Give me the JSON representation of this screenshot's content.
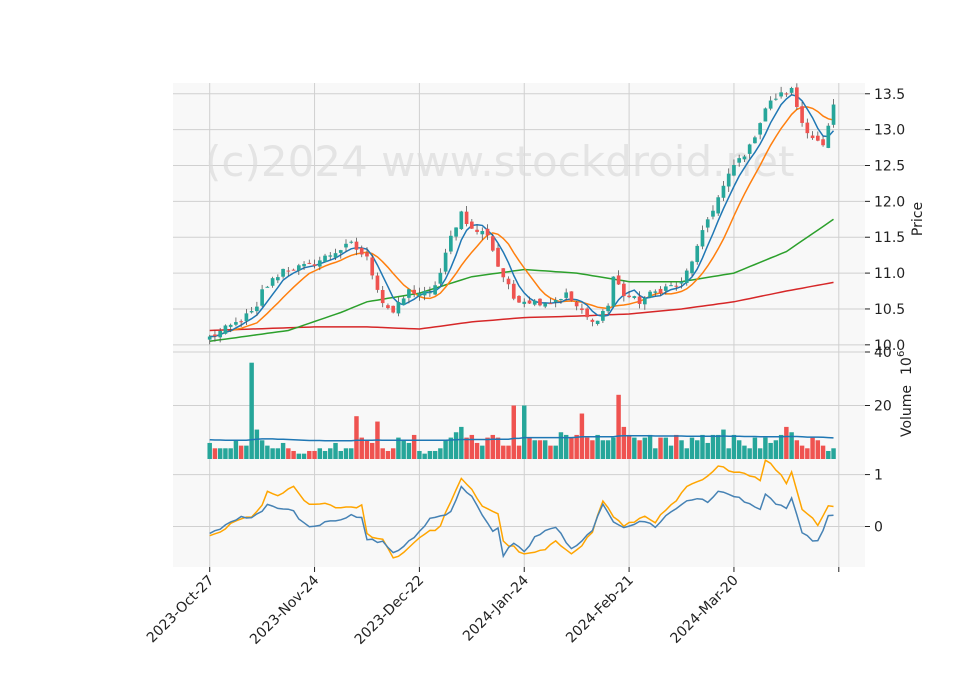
{
  "watermark": "(c)2024 www.stockdroid.net",
  "chart_data": [
    {
      "type": "candlestick",
      "panel": "price",
      "ylabel": "Price",
      "ylim": [
        9.9,
        13.65
      ],
      "yticks": [
        10.0,
        10.5,
        11.0,
        11.5,
        12.0,
        12.5,
        13.0,
        13.5
      ],
      "ytick_labels": [
        "10.0",
        "10.5",
        "11.0",
        "11.5",
        "12.0",
        "12.5",
        "13.0",
        "13.5"
      ],
      "grid": true,
      "n_bars": 120,
      "x_range": [
        -7,
        125
      ],
      "xticks": [
        0,
        20,
        40,
        60,
        80,
        100,
        120
      ],
      "xtick_labels": [
        "2023-Oct-27",
        "2023-Nov-24",
        "2023-Dec-22",
        "2024-Jan-24",
        "2024-Feb-21",
        "2024-Mar-20",
        ""
      ],
      "close_anchors": [
        [
          0,
          10.1
        ],
        [
          5,
          10.3
        ],
        [
          9,
          10.5
        ],
        [
          10,
          10.75
        ],
        [
          14,
          11.05
        ],
        [
          19,
          11.1
        ],
        [
          24,
          11.3
        ],
        [
          27,
          11.4
        ],
        [
          30,
          11.2
        ],
        [
          33,
          10.6
        ],
        [
          35,
          10.45
        ],
        [
          38,
          10.75
        ],
        [
          42,
          10.7
        ],
        [
          44,
          11.0
        ],
        [
          46,
          11.5
        ],
        [
          48,
          11.85
        ],
        [
          50,
          11.6
        ],
        [
          53,
          11.55
        ],
        [
          55,
          11.1
        ],
        [
          58,
          10.65
        ],
        [
          62,
          10.6
        ],
        [
          65,
          10.6
        ],
        [
          68,
          10.7
        ],
        [
          71,
          10.45
        ],
        [
          73,
          10.3
        ],
        [
          76,
          10.55
        ],
        [
          77,
          10.95
        ],
        [
          79,
          10.7
        ],
        [
          82,
          10.6
        ],
        [
          84,
          10.7
        ],
        [
          87,
          10.8
        ],
        [
          90,
          10.85
        ],
        [
          93,
          11.35
        ],
        [
          95,
          11.75
        ],
        [
          97,
          12.05
        ],
        [
          100,
          12.5
        ],
        [
          103,
          12.75
        ],
        [
          106,
          13.3
        ],
        [
          108,
          13.45
        ],
        [
          111,
          13.55
        ],
        [
          113,
          13.1
        ],
        [
          115,
          12.9
        ],
        [
          117,
          12.75
        ],
        [
          119,
          13.3
        ]
      ],
      "ma_colors": {
        "fast": "#1f77b4",
        "medium": "#ff7f0e",
        "slow": "#2ca02c",
        "long": "#d62728"
      },
      "up_color": "#26a69a",
      "down_color": "#ef5350"
    },
    {
      "type": "bar",
      "panel": "volume",
      "ylabel": "Volume",
      "ylabel_exponent": "6",
      "ylim": [
        0,
        40
      ],
      "yticks": [
        20,
        40
      ],
      "ytick_labels": [
        "20",
        "40"
      ],
      "avg_line_color": "#1f77b4",
      "values": [
        6,
        4,
        4,
        4,
        4,
        7,
        5,
        5,
        36,
        11,
        7,
        5,
        4,
        4,
        6,
        4,
        3,
        2,
        2,
        3,
        3,
        4,
        3,
        4,
        6,
        3,
        4,
        4,
        16,
        8,
        7,
        6,
        14,
        4,
        3,
        4,
        8,
        7,
        6,
        9,
        3,
        2,
        3,
        3,
        4,
        7,
        8,
        10,
        12,
        8,
        9,
        6,
        5,
        8,
        9,
        8,
        5,
        5,
        20,
        5,
        20,
        8,
        7,
        7,
        7,
        5,
        5,
        10,
        9,
        8,
        9,
        17,
        8,
        7,
        9,
        7,
        7,
        8,
        24,
        12,
        9,
        8,
        7,
        8,
        9,
        4,
        8,
        8,
        5,
        9,
        7,
        4,
        8,
        7,
        9,
        6,
        9,
        9,
        11,
        4,
        9,
        7,
        5,
        4,
        8,
        4,
        8,
        6,
        7,
        9,
        12,
        10,
        7,
        5,
        4,
        8,
        7,
        5,
        3,
        4
      ],
      "avg_values": [
        7.2,
        7.1,
        7.1,
        7.0,
        7.0,
        7.0,
        7.0,
        7.0,
        7.2,
        7.4,
        7.5,
        7.5,
        7.5,
        7.4,
        7.4,
        7.3,
        7.2,
        7.1,
        7.0,
        6.9,
        6.9,
        6.9,
        6.8,
        6.8,
        6.8,
        6.8,
        6.8,
        6.8,
        7.0,
        7.0,
        7.0,
        7.0,
        7.1,
        7.0,
        7.0,
        7.0,
        7.0,
        7.0,
        7.0,
        7.0,
        7.0,
        7.0,
        7.0,
        7.0,
        7.0,
        7.0,
        7.1,
        7.2,
        7.3,
        7.3,
        7.3,
        7.3,
        7.3,
        7.3,
        7.4,
        7.4,
        7.4,
        7.4,
        7.7,
        7.7,
        8.0,
        8.0,
        8.0,
        8.0,
        8.0,
        8.0,
        8.0,
        8.0,
        8.0,
        8.0,
        8.1,
        8.3,
        8.3,
        8.3,
        8.3,
        8.3,
        8.3,
        8.3,
        8.6,
        8.7,
        8.7,
        8.7,
        8.7,
        8.7,
        8.7,
        8.6,
        8.6,
        8.6,
        8.6,
        8.6,
        8.6,
        8.5,
        8.5,
        8.5,
        8.5,
        8.5,
        8.5,
        8.5,
        8.6,
        8.5,
        8.5,
        8.5,
        8.4,
        8.4,
        8.4,
        8.3,
        8.3,
        8.3,
        8.3,
        8.3,
        8.4,
        8.4,
        8.4,
        8.3,
        8.2,
        8.2,
        8.2,
        8.1,
        8.0,
        7.9
      ]
    },
    {
      "type": "line",
      "panel": "indicator",
      "ylim": [
        -0.78,
        1.3
      ],
      "yticks": [
        0,
        1
      ],
      "ytick_labels": [
        "0",
        "1"
      ],
      "series_colors": [
        "#4682b4",
        "#ffa500"
      ],
      "series1_anchors": [
        [
          0,
          -0.15
        ],
        [
          2,
          -0.05
        ],
        [
          5,
          0.15
        ],
        [
          8,
          0.2
        ],
        [
          10,
          0.3
        ],
        [
          11,
          0.45
        ],
        [
          13,
          0.35
        ],
        [
          16,
          0.3
        ],
        [
          18,
          0.05
        ],
        [
          20,
          0.0
        ],
        [
          22,
          0.1
        ],
        [
          25,
          0.15
        ],
        [
          27,
          0.2
        ],
        [
          29,
          0.15
        ],
        [
          30,
          -0.25
        ],
        [
          33,
          -0.3
        ],
        [
          35,
          -0.5
        ],
        [
          37,
          -0.4
        ],
        [
          40,
          -0.1
        ],
        [
          42,
          0.15
        ],
        [
          44,
          0.2
        ],
        [
          46,
          0.3
        ],
        [
          48,
          0.75
        ],
        [
          50,
          0.6
        ],
        [
          52,
          0.2
        ],
        [
          54,
          -0.1
        ],
        [
          55,
          -0.05
        ],
        [
          56,
          -0.55
        ],
        [
          58,
          -0.3
        ],
        [
          60,
          -0.5
        ],
        [
          62,
          -0.2
        ],
        [
          64,
          -0.1
        ],
        [
          66,
          0.0
        ],
        [
          69,
          -0.45
        ],
        [
          71,
          -0.3
        ],
        [
          73,
          -0.05
        ],
        [
          75,
          0.4
        ],
        [
          77,
          0.1
        ],
        [
          79,
          0.0
        ],
        [
          81,
          0.05
        ],
        [
          83,
          0.1
        ],
        [
          85,
          0.0
        ],
        [
          87,
          0.2
        ],
        [
          89,
          0.35
        ],
        [
          91,
          0.5
        ],
        [
          93,
          0.55
        ],
        [
          95,
          0.45
        ],
        [
          97,
          0.7
        ],
        [
          99,
          0.6
        ],
        [
          101,
          0.55
        ],
        [
          103,
          0.45
        ],
        [
          105,
          0.3
        ],
        [
          106,
          0.6
        ],
        [
          108,
          0.45
        ],
        [
          110,
          0.35
        ],
        [
          111,
          0.55
        ],
        [
          113,
          -0.15
        ],
        [
          116,
          -0.3
        ],
        [
          118,
          0.2
        ]
      ],
      "series2_anchors": [
        [
          0,
          -0.2
        ],
        [
          2,
          -0.1
        ],
        [
          5,
          0.1
        ],
        [
          8,
          0.2
        ],
        [
          10,
          0.4
        ],
        [
          11,
          0.65
        ],
        [
          13,
          0.6
        ],
        [
          16,
          0.75
        ],
        [
          18,
          0.5
        ],
        [
          20,
          0.4
        ],
        [
          22,
          0.45
        ],
        [
          25,
          0.35
        ],
        [
          27,
          0.35
        ],
        [
          29,
          0.4
        ],
        [
          30,
          -0.15
        ],
        [
          33,
          -0.25
        ],
        [
          35,
          -0.6
        ],
        [
          37,
          -0.5
        ],
        [
          40,
          -0.2
        ],
        [
          42,
          -0.1
        ],
        [
          44,
          0.0
        ],
        [
          46,
          0.5
        ],
        [
          48,
          0.9
        ],
        [
          50,
          0.7
        ],
        [
          52,
          0.4
        ],
        [
          54,
          0.3
        ],
        [
          55,
          0.25
        ],
        [
          56,
          -0.3
        ],
        [
          58,
          -0.4
        ],
        [
          60,
          -0.55
        ],
        [
          62,
          -0.5
        ],
        [
          64,
          -0.45
        ],
        [
          66,
          -0.3
        ],
        [
          69,
          -0.5
        ],
        [
          71,
          -0.35
        ],
        [
          73,
          -0.1
        ],
        [
          75,
          0.5
        ],
        [
          77,
          0.2
        ],
        [
          79,
          0.0
        ],
        [
          81,
          0.1
        ],
        [
          83,
          0.2
        ],
        [
          85,
          0.1
        ],
        [
          87,
          0.3
        ],
        [
          89,
          0.5
        ],
        [
          91,
          0.75
        ],
        [
          93,
          0.85
        ],
        [
          95,
          0.95
        ],
        [
          97,
          1.15
        ],
        [
          99,
          1.1
        ],
        [
          101,
          1.05
        ],
        [
          103,
          1.0
        ],
        [
          105,
          0.9
        ],
        [
          106,
          1.3
        ],
        [
          108,
          1.1
        ],
        [
          110,
          0.85
        ],
        [
          111,
          1.05
        ],
        [
          113,
          0.35
        ],
        [
          116,
          0.05
        ],
        [
          118,
          0.4
        ]
      ]
    }
  ]
}
